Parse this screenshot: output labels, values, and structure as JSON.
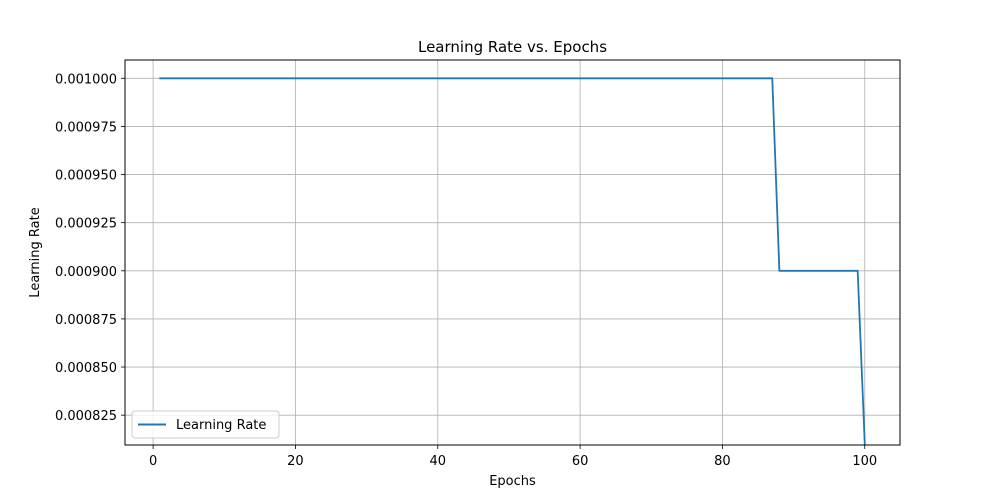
{
  "chart_data": {
    "type": "line",
    "title": "Learning Rate vs. Epochs",
    "xlabel": "Epochs",
    "ylabel": "Learning Rate",
    "xlim": [
      -3.95,
      104.95
    ],
    "ylim": [
      0.0008095,
      0.0010095
    ],
    "xticks": [
      0,
      20,
      40,
      60,
      80,
      100
    ],
    "xtick_labels": [
      "0",
      "20",
      "40",
      "60",
      "80",
      "100"
    ],
    "yticks": [
      0.000825,
      0.00085,
      0.000875,
      0.0009,
      0.000925,
      0.00095,
      0.000975,
      0.001
    ],
    "ytick_labels": [
      "0.000825",
      "0.000850",
      "0.000875",
      "0.000900",
      "0.000925",
      "0.000950",
      "0.000975",
      "0.001000"
    ],
    "grid": true,
    "legend_position": "lower-left",
    "series": [
      {
        "name": "Learning Rate",
        "color": "#1f77b4",
        "x": [
          1,
          87,
          88,
          99,
          100
        ],
        "y": [
          0.001,
          0.001,
          0.0009,
          0.0009,
          0.00081
        ]
      }
    ]
  }
}
